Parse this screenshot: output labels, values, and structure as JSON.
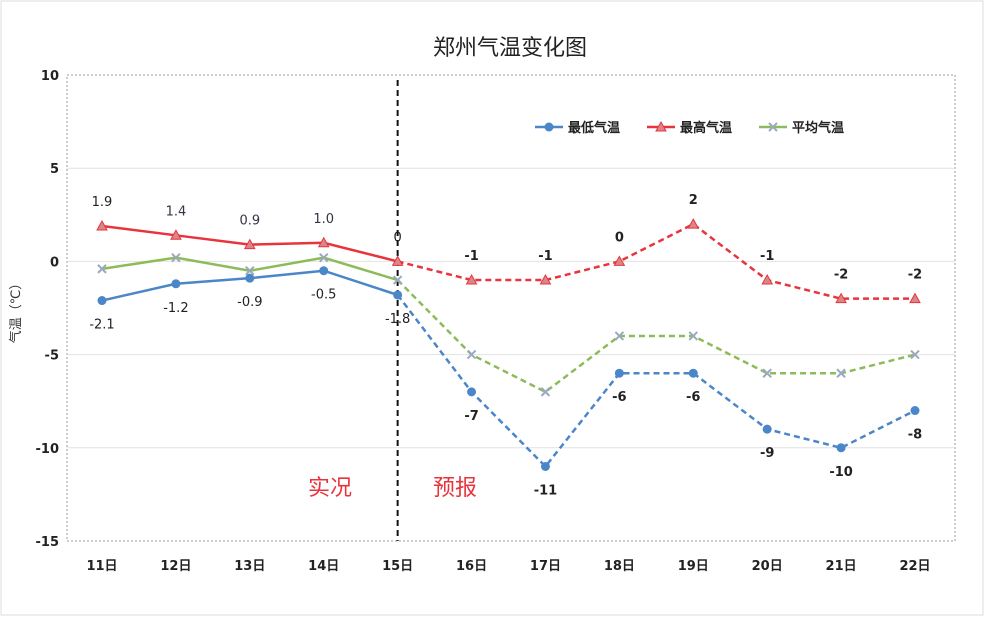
{
  "chart_data": {
    "type": "line",
    "title": "郑州气温变化图",
    "ylabel": "气温（℃）",
    "xlabel": "",
    "ylim": [
      -15,
      10
    ],
    "yticks": [
      10,
      5,
      0,
      -5,
      -10,
      -15
    ],
    "categories": [
      "11日",
      "12日",
      "13日",
      "14日",
      "15日",
      "16日",
      "17日",
      "18日",
      "19日",
      "20日",
      "21日",
      "22日"
    ],
    "observed_until_index": 4,
    "legend_position": "top-right",
    "series": [
      {
        "name": "最低气温",
        "color": "#4a86c8",
        "marker": "circle",
        "values": [
          -2.1,
          -1.2,
          -0.9,
          -0.5,
          -1.8,
          -7,
          -11,
          -6,
          -6,
          -9,
          -10,
          -8
        ],
        "labels": [
          "-2.1",
          "-1.2",
          "-0.9",
          "-0.5",
          "-1.8",
          "-7",
          "-11",
          "-6",
          "-6",
          "-9",
          "-10",
          "-8"
        ]
      },
      {
        "name": "最高气温",
        "color": "#e8343c",
        "marker": "triangle",
        "values": [
          1.9,
          1.4,
          0.9,
          1.0,
          0,
          -1,
          -1,
          0,
          2,
          -1,
          -2,
          -2
        ],
        "labels": [
          "1.9",
          "1.4",
          "0.9",
          "1.0",
          "0",
          "-1",
          "-1",
          "0",
          "2",
          "-1",
          "-2",
          "-2"
        ]
      },
      {
        "name": "平均气温",
        "color": "#8dbb5a",
        "marker": "x",
        "values": [
          -0.4,
          0.2,
          -0.5,
          0.2,
          -1.0,
          -5,
          -7,
          -4,
          -4,
          -6,
          -6,
          -5
        ]
      }
    ],
    "annotations": [
      {
        "text": "实况",
        "color": "#e8343c"
      },
      {
        "text": "预报",
        "color": "#e8343c"
      }
    ]
  }
}
